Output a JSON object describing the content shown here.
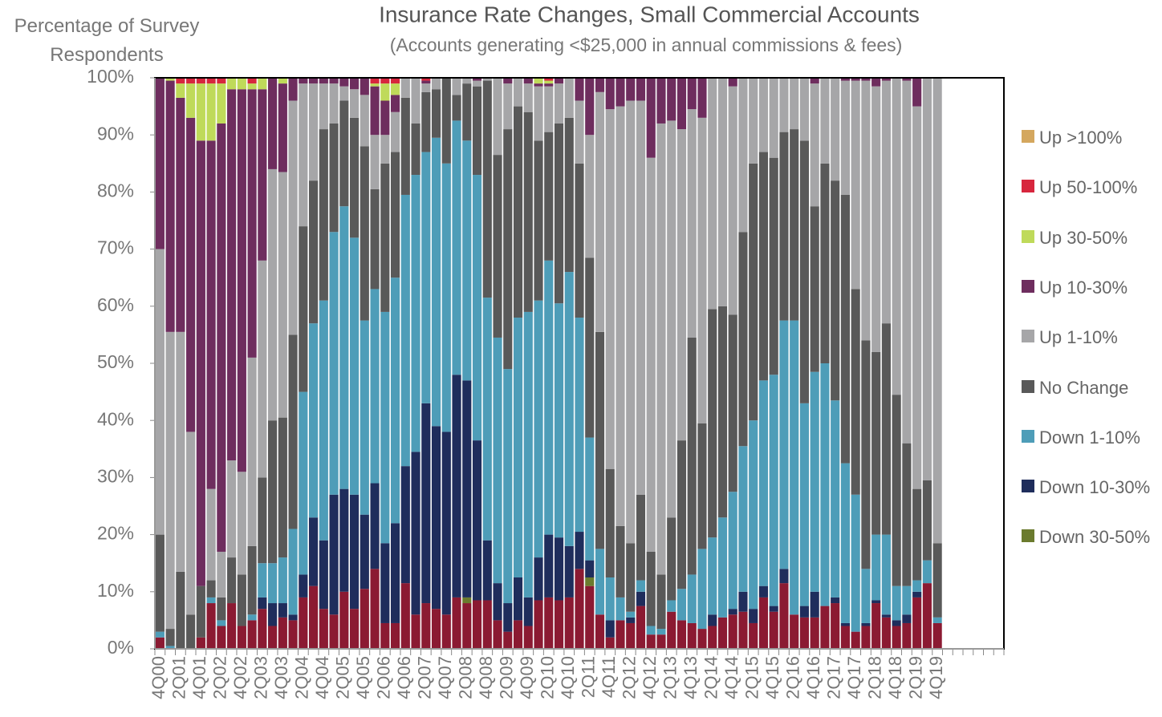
{
  "chart_data": {
    "type": "stacked_bar",
    "title": "Insurance Rate Changes, Small Commercial Accounts",
    "subtitle": "(Accounts generating <$25,000 in annual commissions & fees)",
    "y_label": "Percentage of Survey Respondents",
    "categories": [
      "4Q00",
      null,
      "2Q01",
      null,
      "4Q01",
      null,
      "2Q02",
      null,
      "4Q02",
      null,
      "2Q03",
      null,
      "4Q03",
      null,
      "2Q04",
      null,
      "4Q04",
      null,
      "2Q05",
      null,
      "4Q05",
      null,
      "2Q06",
      null,
      "4Q06",
      null,
      "2Q07",
      null,
      "4Q07",
      null,
      "2Q08",
      null,
      "4Q08",
      null,
      "2Q09",
      null,
      "4Q09",
      null,
      "2Q10",
      null,
      "4Q10",
      null,
      "2Q11",
      null,
      "4Q11",
      null,
      "2Q12",
      null,
      "4Q12",
      null,
      "2Q13",
      null,
      "4Q13",
      null,
      "2Q14",
      null,
      "4Q14",
      null,
      "2Q15",
      null,
      "4Q15",
      null,
      "2Q16",
      null,
      "4Q16",
      null,
      "2Q17",
      null,
      "4Q17",
      null,
      "2Q18",
      null,
      "4Q18",
      null,
      "2Q19",
      null,
      "4Q19",
      null,
      null,
      null,
      null,
      null,
      null
    ],
    "series": [
      {
        "color": "#8b1a32",
        "values": [
          2,
          0,
          0,
          0,
          2,
          8,
          4,
          8,
          4,
          5,
          7,
          4,
          5.5,
          5,
          9,
          11,
          7,
          6,
          10,
          7,
          10.5,
          14,
          4.5,
          4.5,
          11.5,
          6,
          8,
          7,
          6,
          9,
          8,
          8.5,
          8.5,
          5,
          3,
          5,
          4,
          8.5,
          9,
          8.5,
          9,
          14,
          11,
          6,
          2,
          5,
          4.5,
          7.5,
          2.5,
          2.5,
          6.5,
          5,
          4.5,
          3.5,
          4,
          5.5,
          6,
          6.5,
          4.5,
          9,
          6.5,
          11.5,
          6,
          5.5,
          5.5,
          7.5,
          8,
          4,
          3,
          4,
          8,
          5.5,
          4,
          4.5,
          9,
          11.5,
          4.5,
          null,
          null,
          null,
          null,
          null,
          null
        ]
      },
      {
        "name": "Down 30-50%",
        "color": "#6b7b2e",
        "values": [
          0,
          0,
          0,
          0,
          0,
          0,
          0,
          0,
          0,
          0,
          0,
          0,
          0,
          0,
          0,
          0,
          0,
          0,
          0,
          0,
          0,
          0,
          0,
          0,
          0,
          0,
          0,
          0,
          0,
          0,
          1,
          0,
          0,
          0,
          0,
          0,
          0,
          0,
          0,
          0,
          0,
          0,
          1.5,
          0,
          0,
          0,
          0,
          0,
          0,
          0,
          0,
          0,
          0,
          0,
          0,
          0,
          0,
          0,
          0,
          0,
          0,
          0,
          0,
          0,
          0,
          0,
          0,
          0,
          0,
          0,
          0,
          0,
          0,
          0,
          0,
          0,
          0,
          null,
          null,
          null,
          null,
          null,
          null
        ]
      },
      {
        "name": "Down 10-30%",
        "color": "#1f2d5c",
        "values": [
          0,
          0,
          0,
          0,
          0,
          0,
          0,
          0,
          0,
          0,
          2,
          4,
          2.5,
          1,
          4,
          12,
          12,
          21,
          18,
          20,
          13,
          15,
          14,
          17.5,
          20.5,
          28.5,
          35,
          32,
          32,
          39,
          38,
          28,
          10.5,
          6.5,
          5,
          7.5,
          5,
          7.5,
          11,
          11,
          9,
          6.5,
          3,
          0,
          3,
          0,
          1,
          2.5,
          0,
          0,
          0,
          0,
          0,
          0,
          2,
          0,
          1,
          3.5,
          2.5,
          2,
          1,
          2.5,
          0,
          2,
          4.5,
          0,
          1,
          0.5,
          0,
          0.5,
          0.5,
          0.5,
          1,
          1.5,
          1,
          0,
          0,
          null,
          null,
          null,
          null,
          null,
          null
        ]
      },
      {
        "name": "Down 1-10%",
        "color": "#4e9db8",
        "values": [
          1,
          0.5,
          0,
          0,
          0,
          1,
          1,
          0,
          0,
          1,
          6,
          7,
          8,
          15,
          32,
          34,
          42,
          46,
          49.5,
          45,
          34,
          34,
          40.5,
          43,
          47.5,
          48.5,
          44,
          50.5,
          47,
          44.5,
          42,
          46.5,
          42.5,
          43,
          41,
          45.5,
          50,
          45,
          48,
          41,
          48,
          37.5,
          21.5,
          11.5,
          7.5,
          4,
          1,
          2,
          1.5,
          1,
          2,
          5.5,
          8.5,
          14,
          13.5,
          17.5,
          20.5,
          25.5,
          33,
          36,
          40.5,
          43.5,
          51.5,
          35.5,
          38.5,
          42.5,
          34.5,
          28,
          24,
          9.5,
          11.5,
          14,
          6,
          5,
          2,
          4,
          1,
          null,
          null,
          null,
          null,
          null,
          null
        ]
      },
      {
        "name": "No Change",
        "color": "#595959",
        "values": [
          17,
          3,
          13.5,
          6,
          9,
          3,
          4,
          8,
          9,
          12,
          15,
          25,
          24.5,
          34,
          29,
          25,
          30,
          19,
          18.5,
          21,
          30.5,
          17.5,
          26,
          22,
          17,
          9,
          10.5,
          8.5,
          15,
          4.5,
          10,
          15.5,
          38,
          32,
          42,
          37,
          35,
          28,
          22.5,
          31.5,
          27,
          27,
          31.5,
          38,
          19,
          12.5,
          12,
          15,
          13,
          9.5,
          14.5,
          26,
          41.5,
          22,
          40,
          37,
          31,
          37.5,
          45,
          40,
          38,
          33,
          33.5,
          46,
          29,
          35,
          38.5,
          47,
          36,
          40,
          32,
          37,
          33.5,
          25,
          16,
          14,
          13,
          null,
          null,
          null,
          null,
          null,
          null
        ]
      },
      {
        "name": "Up 1-10%",
        "color": "#a6a6a8",
        "values": [
          50,
          52,
          42,
          32,
          0,
          16,
          8,
          17,
          18,
          33,
          38,
          44,
          43,
          41,
          25,
          17,
          8,
          7,
          2.5,
          5,
          9,
          9.5,
          5,
          7,
          3.5,
          8,
          1.5,
          2,
          0,
          3,
          1,
          1,
          0.5,
          13.5,
          8,
          5,
          5,
          9.5,
          8,
          7,
          7,
          11,
          21.5,
          42,
          63,
          73.5,
          77.5,
          69,
          69,
          79,
          69.5,
          54.5,
          40,
          53.5,
          40.5,
          40,
          40,
          27,
          15,
          13,
          14,
          9.5,
          9,
          11,
          21.5,
          15,
          18,
          20,
          36.5,
          45.5,
          46.5,
          42.5,
          55.5,
          63.5,
          67,
          70.5,
          81.5,
          null,
          null,
          null,
          null,
          null,
          null
        ]
      },
      {
        "name": "Up 10-30%",
        "color": "#6e2d5e",
        "values": [
          30,
          44,
          41,
          55,
          78,
          61,
          75,
          65,
          67,
          47,
          30,
          16,
          15.5,
          4,
          1,
          1,
          1,
          1,
          1.5,
          2,
          3,
          8.5,
          6,
          3,
          0,
          0,
          0.5,
          0,
          0,
          0,
          0,
          0.5,
          0,
          0,
          1,
          0,
          1,
          0.5,
          0.5,
          1,
          0,
          4,
          10,
          2.5,
          5.5,
          5,
          4,
          4,
          14,
          8,
          7.5,
          9,
          5.5,
          7,
          0,
          0,
          1.5,
          0,
          0,
          0,
          0,
          0,
          0,
          0,
          1,
          0,
          0,
          0.5,
          0.5,
          0.5,
          1.5,
          0.5,
          0,
          0.5,
          5,
          0,
          0,
          null,
          null,
          null,
          null,
          null,
          null
        ]
      },
      {
        "name": "Up 30-50%",
        "color": "#bfda5a",
        "values": [
          0,
          0.5,
          2.5,
          6,
          10,
          10,
          7,
          2,
          2,
          1,
          2,
          0,
          1,
          0,
          0,
          0,
          0,
          0,
          0,
          0,
          0,
          0.5,
          3,
          2,
          0,
          0,
          0,
          0,
          0,
          0,
          0,
          0,
          0,
          0,
          0,
          0,
          0,
          1,
          0.5,
          0,
          0,
          0,
          0,
          0,
          0,
          0,
          0,
          0,
          0,
          0,
          0,
          0,
          0,
          0,
          0,
          0,
          0,
          0,
          0,
          0,
          0,
          0,
          0,
          0,
          0,
          0,
          0,
          0,
          0,
          0,
          0,
          0,
          0,
          0,
          0,
          0,
          0,
          null,
          null,
          null,
          null,
          null,
          null
        ]
      },
      {
        "name": "Up 50-100%",
        "color": "#d7263d",
        "values": [
          0,
          0,
          1,
          1,
          1,
          1,
          1,
          0,
          0,
          1,
          0,
          0,
          0,
          0,
          0,
          0,
          0,
          0,
          0,
          0,
          0,
          1,
          1,
          1,
          0,
          0,
          0.5,
          0,
          0,
          0,
          0,
          0,
          0,
          0,
          0,
          0,
          0,
          0,
          0.5,
          0,
          0,
          0,
          0,
          0,
          0,
          0,
          0,
          0,
          0,
          0,
          0,
          0,
          0,
          0,
          0,
          0,
          0,
          0,
          0,
          0,
          0,
          0,
          0,
          0,
          0,
          0,
          0,
          0,
          0,
          0,
          0,
          0,
          0,
          0,
          0,
          0,
          0,
          null,
          null,
          null,
          null,
          null,
          null
        ]
      },
      {
        "name": "Up >100%",
        "color": "#d4a75e",
        "values": [
          0,
          0,
          0,
          0,
          0,
          0,
          0,
          0,
          0,
          0,
          0,
          0,
          0,
          0,
          0,
          0,
          0,
          0,
          0,
          0,
          0,
          0,
          0,
          0,
          0,
          0,
          0,
          0,
          0,
          0,
          0,
          0,
          0,
          0,
          0,
          0,
          0,
          0,
          0,
          0,
          0,
          0,
          0,
          0,
          0,
          0,
          0,
          0,
          0,
          0,
          0,
          0,
          0,
          0,
          0,
          0,
          0,
          0,
          0,
          0,
          0,
          0,
          0,
          0,
          0,
          0,
          0,
          0,
          0,
          0,
          0,
          0,
          0,
          0,
          0,
          0,
          0,
          null,
          null,
          null,
          null,
          null,
          null
        ]
      }
    ],
    "ylim": [
      0,
      100
    ],
    "yticks": [
      {
        "value": 0,
        "label": "0%"
      },
      {
        "value": 10,
        "label": "10%"
      },
      {
        "value": 20,
        "label": "20%"
      },
      {
        "value": 30,
        "label": "30%"
      },
      {
        "value": 40,
        "label": "40%"
      },
      {
        "value": 50,
        "label": "50%"
      },
      {
        "value": 60,
        "label": "60%"
      },
      {
        "value": 70,
        "label": "70%"
      },
      {
        "value": 80,
        "label": "80%"
      },
      {
        "value": 90,
        "label": "90%"
      },
      {
        "value": 100,
        "label": "100%"
      }
    ],
    "legend": "right"
  }
}
